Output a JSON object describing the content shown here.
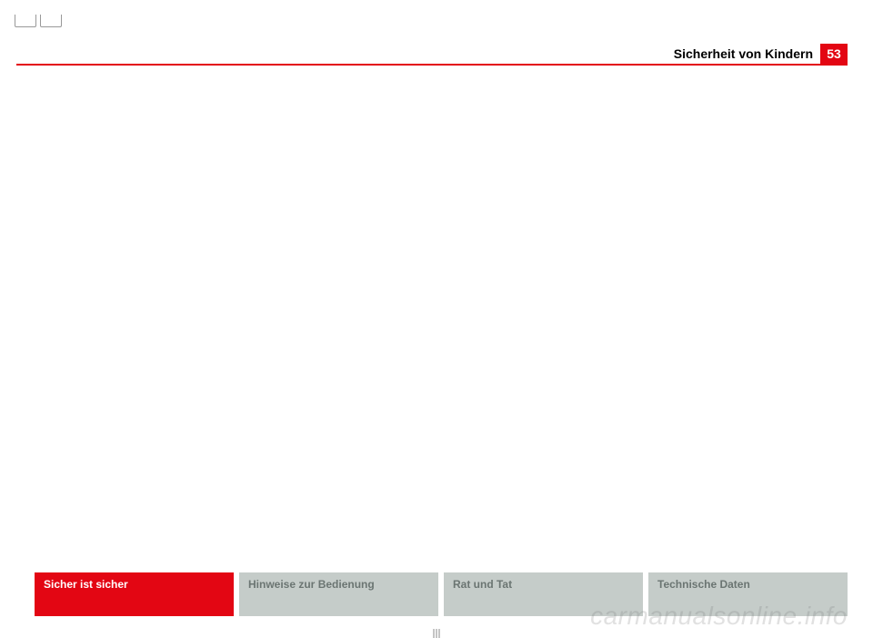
{
  "header": {
    "title": "Sicherheit von Kindern",
    "page_number": "53"
  },
  "footer_tabs": [
    {
      "label": "Sicher ist sicher",
      "active": true
    },
    {
      "label": "Hinweise zur Bedienung",
      "active": false
    },
    {
      "label": "Rat und Tat",
      "active": false
    },
    {
      "label": "Technische Daten",
      "active": false
    }
  ],
  "watermark": "carmanualsonline.info",
  "colors": {
    "brand_red": "#e30613",
    "inactive_tab_bg": "#c5ccc9",
    "inactive_tab_text": "#6b7572",
    "white": "#ffffff",
    "black": "#000000"
  }
}
